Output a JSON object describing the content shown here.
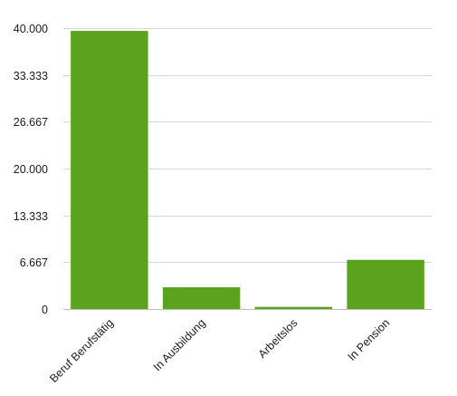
{
  "chart_data": {
    "type": "bar",
    "title": "",
    "xlabel": "",
    "ylabel": "",
    "categories": [
      "Beruf Berufstätig",
      "In Ausbildung",
      "Arbeitslos",
      "In Pension"
    ],
    "values": [
      39600,
      3100,
      300,
      7000
    ],
    "ylim": [
      0,
      40000
    ],
    "yticks": [
      0,
      6667,
      13333,
      20000,
      26667,
      33333,
      40000
    ],
    "ytick_labels": [
      "0",
      "6.667",
      "13.333",
      "20.000",
      "26.667",
      "33.333",
      "40.000"
    ],
    "grid": true,
    "legend": "none",
    "bar_color": "#5ba31e"
  }
}
